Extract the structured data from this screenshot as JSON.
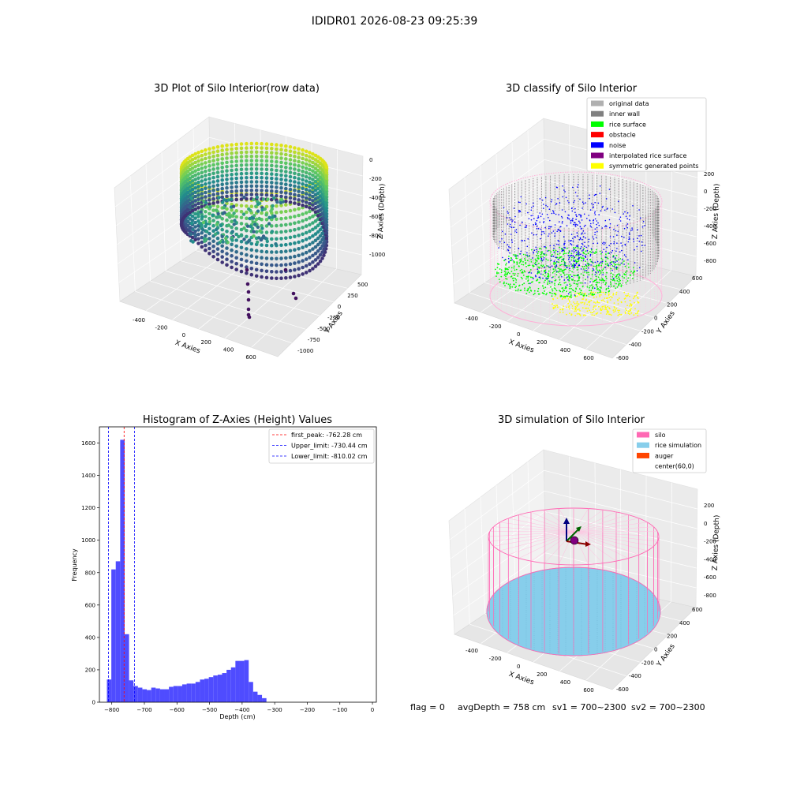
{
  "suptitle": "IDIDR01 2026-08-23 09:25:39",
  "colors": {
    "viridis_low": "#3b2a78",
    "viridis_mid": "#21918c",
    "viridis_high": "#dde318",
    "original": "#b0b0b0",
    "inner_wall": "#808080",
    "rice_surface": "#00ff00",
    "obstacle": "#ff0000",
    "noise": "#0000ff",
    "interpolated": "#800080",
    "symmetric": "#ffff00",
    "silo": "#ff69b4",
    "rice_sim": "#87ceeb",
    "auger": "#ff4500",
    "hist_bar": "#4f4cff",
    "peak_line": "#ff0000",
    "limit_line": "#0000ff"
  },
  "chart_data": [
    {
      "type": "scatter",
      "title": "3D Plot of Silo Interior(row data)",
      "xlabel": "X Axies",
      "ylabel": "Y Axies",
      "zlabel": "Z Axies (Depth)",
      "xticks": [
        "-400",
        "-200",
        "0",
        "200",
        "400",
        "600"
      ],
      "yticks": [
        "-1000",
        "-750",
        "-500",
        "-250",
        "0",
        "250",
        "500"
      ],
      "zticks": [
        "-1000",
        "-800",
        "-600",
        "-400",
        "-200",
        "0"
      ],
      "colormap": "viridis"
    },
    {
      "type": "scatter",
      "title": "3D classify of Silo Interior",
      "xlabel": "X Axies",
      "ylabel": "Y Axies",
      "zlabel": "Z Axies (Depth)",
      "xticks": [
        "-400",
        "-200",
        "0",
        "200",
        "400",
        "600"
      ],
      "yticks": [
        "-600",
        "-400",
        "-200",
        "0",
        "200",
        "400",
        "600"
      ],
      "zticks": [
        "-800",
        "-600",
        "-400",
        "-200",
        "0",
        "200"
      ],
      "legend": [
        {
          "label": "original data",
          "color": "#b0b0b0"
        },
        {
          "label": "inner wall",
          "color": "#808080"
        },
        {
          "label": "rice surface",
          "color": "#00ff00"
        },
        {
          "label": "obstacle",
          "color": "#ff0000"
        },
        {
          "label": "noise",
          "color": "#0000ff"
        },
        {
          "label": "interpolated rice surface",
          "color": "#800080"
        },
        {
          "label": "symmetric generated points",
          "color": "#ffff00"
        }
      ],
      "legend_position": "top-right"
    },
    {
      "type": "bar",
      "title": "Histogram of Z-Axies (Height) Values",
      "xlabel": "Depth (cm)",
      "ylabel": "Frequency",
      "xlim": [
        -838,
        12
      ],
      "ylim": [
        0,
        1700
      ],
      "xticks": [
        -800,
        -700,
        -600,
        -500,
        -400,
        -300,
        -200,
        -100,
        0
      ],
      "yticks": [
        0,
        200,
        400,
        600,
        800,
        1000,
        1200,
        1400,
        1600
      ],
      "bin_start": -815,
      "bin_width": 13.6,
      "values": [
        140,
        820,
        870,
        1620,
        420,
        135,
        100,
        90,
        80,
        75,
        90,
        85,
        80,
        80,
        95,
        100,
        100,
        110,
        115,
        115,
        125,
        140,
        145,
        155,
        165,
        170,
        180,
        200,
        215,
        255,
        255,
        260,
        125,
        65,
        45,
        25
      ],
      "lines": [
        {
          "label": "first_peak: -762.28 cm",
          "x": -762.28,
          "color": "#ff0000"
        },
        {
          "label": "Upper_limit: -730.44 cm",
          "x": -730.44,
          "color": "#0000ff"
        },
        {
          "label": "Lower_limit: -810.02 cm",
          "x": -810.02,
          "color": "#0000ff"
        }
      ],
      "legend_position": "top-right"
    },
    {
      "type": "scatter",
      "title": "3D simulation of Silo Interior",
      "xlabel": "X Axies",
      "ylabel": "Y Axies",
      "zlabel": "Z Axies (Depth)",
      "xticks": [
        "-400",
        "-200",
        "0",
        "200",
        "400",
        "600"
      ],
      "yticks": [
        "-600",
        "-400",
        "-200",
        "0",
        "200",
        "400",
        "600"
      ],
      "zticks": [
        "-800",
        "-600",
        "-400",
        "-200",
        "0",
        "200"
      ],
      "legend": [
        {
          "label": "silo",
          "color": "#ff69b4"
        },
        {
          "label": "rice simulation",
          "color": "#87ceeb"
        },
        {
          "label": "auger",
          "color": "#ff4500"
        },
        {
          "label": "center(60,0)",
          "color": ""
        }
      ],
      "legend_position": "top-right"
    }
  ],
  "footer": {
    "flag": "flag = 0",
    "avgDepth": "avgDepth = 758 cm",
    "sv1": "sv1 = 700~2300",
    "sv2": "sv2 = 700~2300"
  }
}
